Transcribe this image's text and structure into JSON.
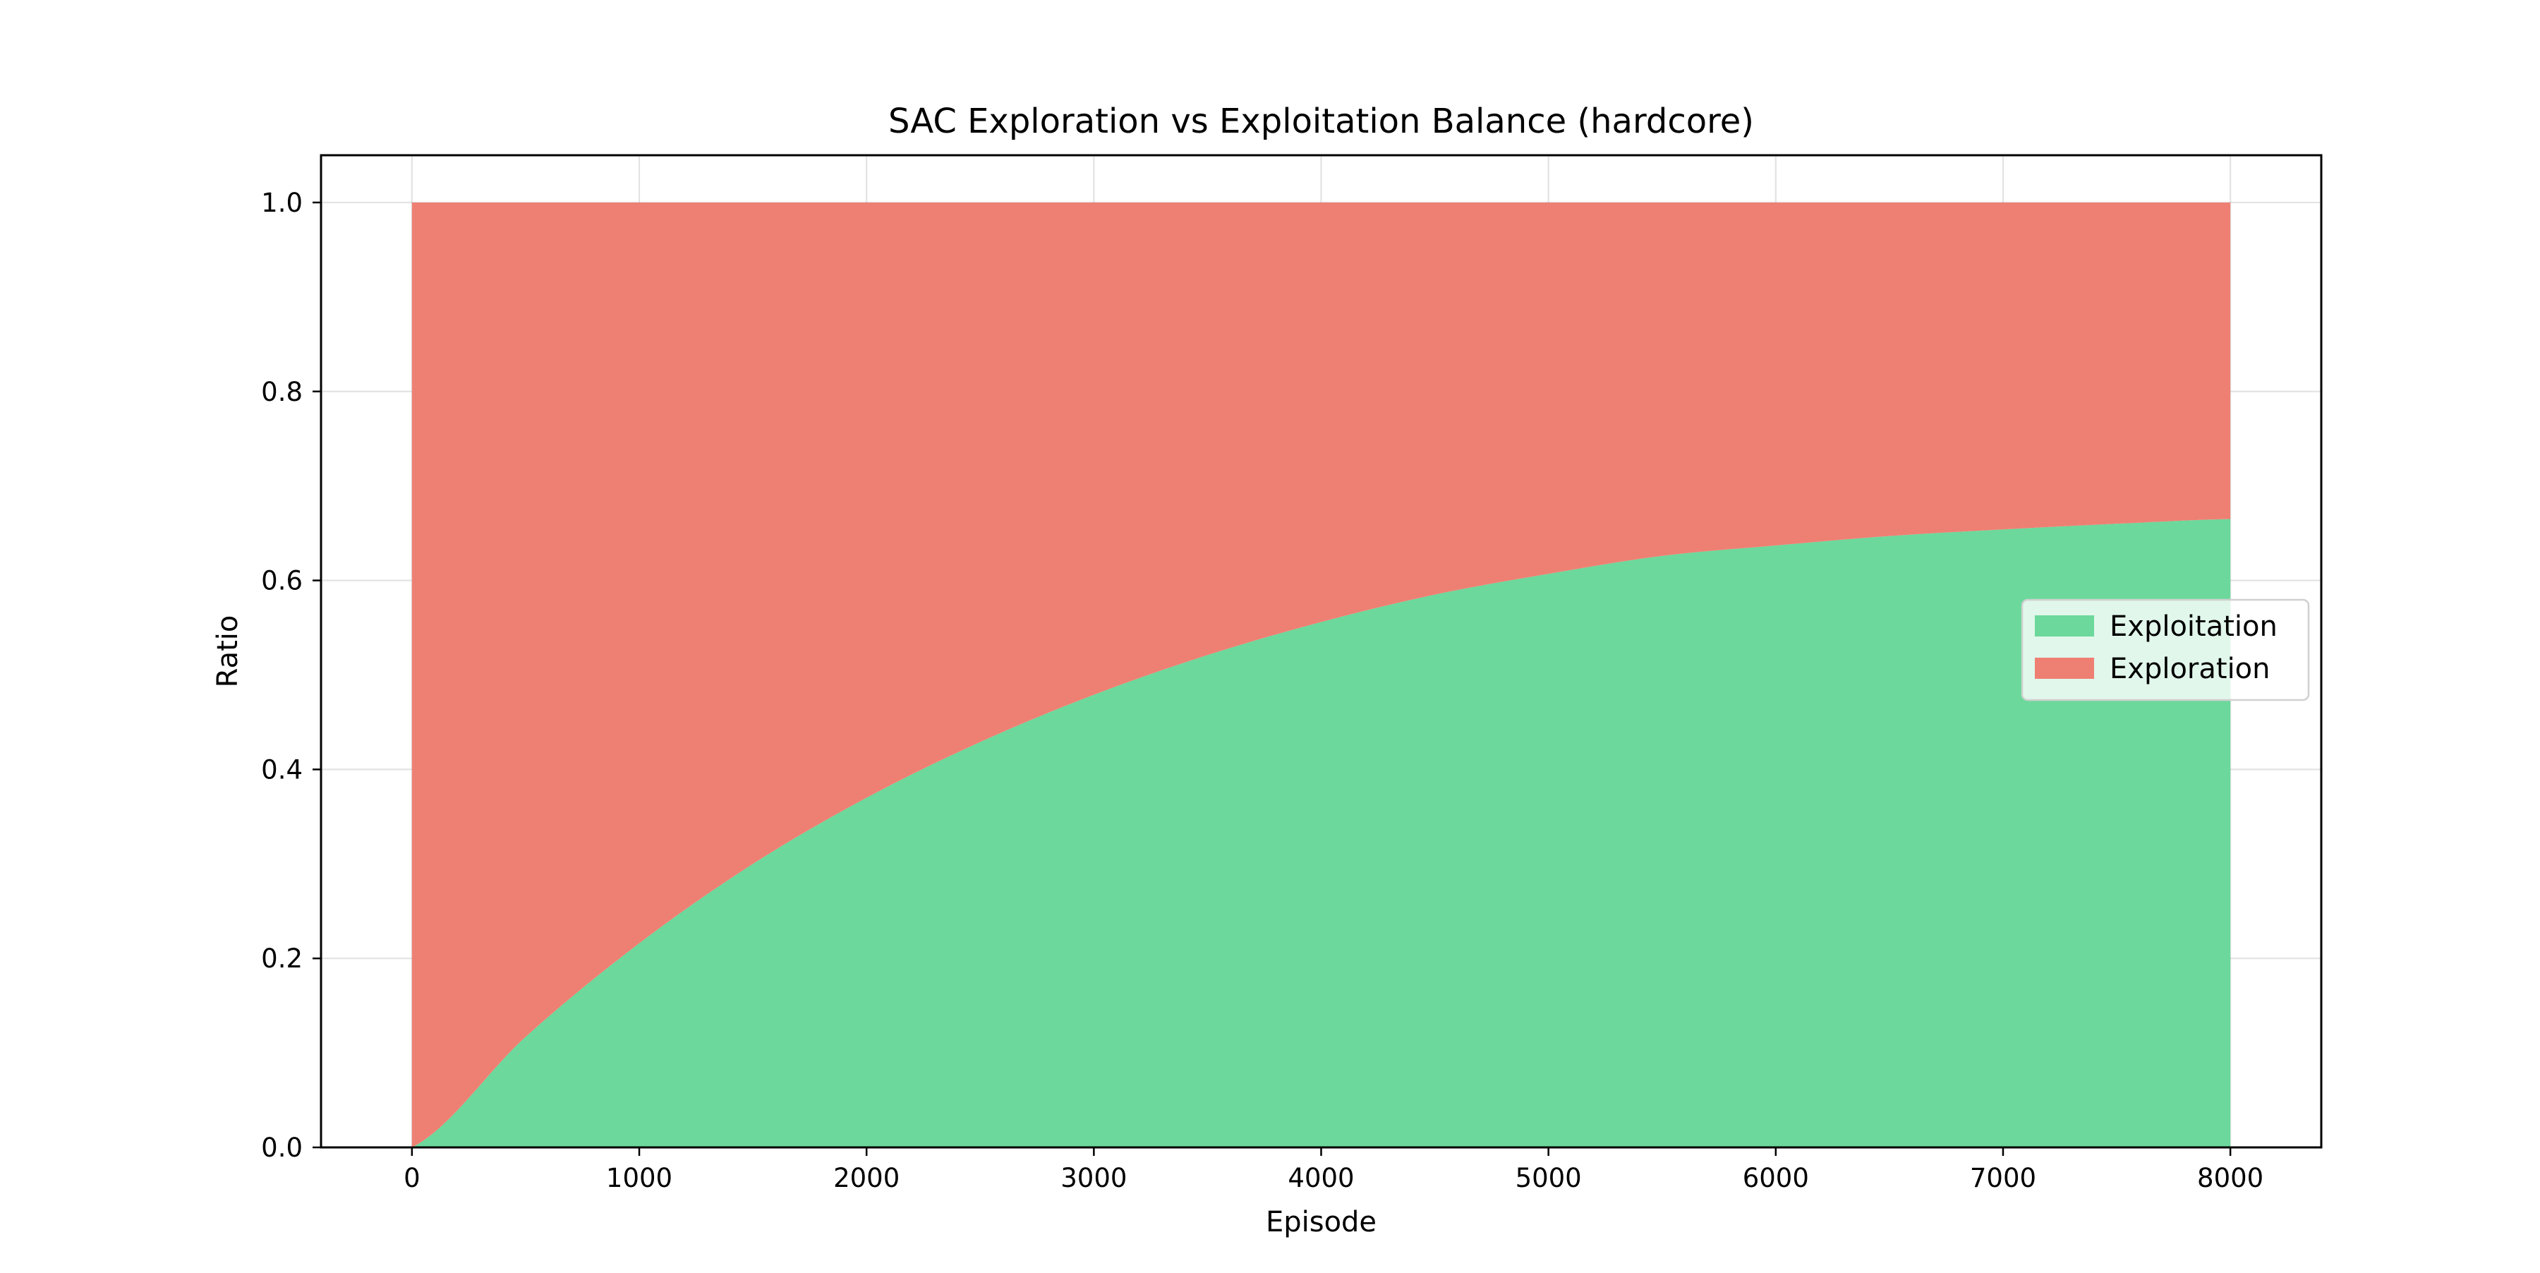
{
  "chart_data": {
    "type": "area",
    "stacked": true,
    "title": "SAC Exploration vs Exploitation Balance (hardcore)",
    "xlabel": "Episode",
    "ylabel": "Ratio",
    "xlim": [
      -400,
      8400
    ],
    "ylim": [
      0,
      1.05
    ],
    "xticks": [
      0,
      1000,
      2000,
      3000,
      4000,
      5000,
      6000,
      7000,
      8000
    ],
    "xtick_labels": [
      "0",
      "1000",
      "2000",
      "3000",
      "4000",
      "5000",
      "6000",
      "7000",
      "8000"
    ],
    "yticks": [
      0.0,
      0.2,
      0.4,
      0.6,
      0.8,
      1.0
    ],
    "ytick_labels": [
      "0.0",
      "0.2",
      "0.4",
      "0.6",
      "0.8",
      "1.0"
    ],
    "grid": true,
    "legend_position": "center-right",
    "x": [
      0,
      500,
      1000,
      1500,
      2000,
      2500,
      3000,
      3500,
      4000,
      4500,
      5000,
      5500,
      6000,
      6500,
      7000,
      7500,
      8000
    ],
    "series": [
      {
        "name": "Exploitation",
        "color": "#6cd89b",
        "values": [
          0.0,
          0.117,
          0.216,
          0.3,
          0.37,
          0.429,
          0.479,
          0.521,
          0.556,
          0.585,
          0.607,
          0.626,
          0.637,
          0.647,
          0.654,
          0.66,
          0.665
        ]
      },
      {
        "name": "Exploration",
        "color": "#ee8073",
        "values": [
          1.0,
          0.883,
          0.784,
          0.7,
          0.63,
          0.571,
          0.521,
          0.479,
          0.444,
          0.415,
          0.393,
          0.374,
          0.363,
          0.353,
          0.346,
          0.34,
          0.335
        ]
      }
    ]
  }
}
